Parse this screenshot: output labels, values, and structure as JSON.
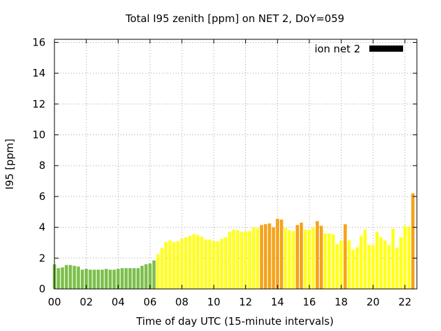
{
  "chart_data": {
    "type": "bar",
    "title": "Total I95 zenith [ppm] on NET 2, DoY=059",
    "xlabel": "Time of day UTC (15-minute intervals)",
    "ylabel": "I95 [ppm]",
    "xlim": [
      0,
      22.75
    ],
    "ylim": [
      0,
      16.2
    ],
    "x_ticks": [
      {
        "value": 0,
        "label": "00"
      },
      {
        "value": 2,
        "label": "02"
      },
      {
        "value": 4,
        "label": "04"
      },
      {
        "value": 6,
        "label": "06"
      },
      {
        "value": 8,
        "label": "08"
      },
      {
        "value": 10,
        "label": "10"
      },
      {
        "value": 12,
        "label": "12"
      },
      {
        "value": 14,
        "label": "14"
      },
      {
        "value": 16,
        "label": "16"
      },
      {
        "value": 18,
        "label": "18"
      },
      {
        "value": 20,
        "label": "20"
      },
      {
        "value": 22,
        "label": "22"
      }
    ],
    "y_ticks": [
      {
        "value": 0,
        "label": "0"
      },
      {
        "value": 2,
        "label": "2"
      },
      {
        "value": 4,
        "label": "4"
      },
      {
        "value": 6,
        "label": "6"
      },
      {
        "value": 8,
        "label": "8"
      },
      {
        "value": 10,
        "label": "10"
      },
      {
        "value": 12,
        "label": "12"
      },
      {
        "value": 14,
        "label": "14"
      },
      {
        "value": 16,
        "label": "16"
      }
    ],
    "grid": true,
    "legend": {
      "label": "ion net 2",
      "color": "#000000",
      "placement": "top-right"
    },
    "interval_hours": 0.25,
    "level_colors": {
      "low": "#7cbf4a",
      "mid": "#ffff1e",
      "high": "#f5a21a"
    },
    "values": [
      1.6,
      1.35,
      1.4,
      1.55,
      1.55,
      1.5,
      1.45,
      1.25,
      1.3,
      1.25,
      1.25,
      1.25,
      1.25,
      1.3,
      1.25,
      1.25,
      1.3,
      1.35,
      1.35,
      1.35,
      1.35,
      1.35,
      1.5,
      1.6,
      1.65,
      1.85,
      2.25,
      2.65,
      3.05,
      3.15,
      3.05,
      3.1,
      3.25,
      3.35,
      3.45,
      3.55,
      3.5,
      3.4,
      3.2,
      3.2,
      3.1,
      3.1,
      3.25,
      3.35,
      3.7,
      3.85,
      3.8,
      3.7,
      3.75,
      3.75,
      4.0,
      3.95,
      4.15,
      4.2,
      4.25,
      4.0,
      4.55,
      4.5,
      3.95,
      3.8,
      3.75,
      4.15,
      4.3,
      3.85,
      3.85,
      4.0,
      4.4,
      4.1,
      3.6,
      3.6,
      3.55,
      2.9,
      3.15,
      4.2,
      3.15,
      2.55,
      2.7,
      3.45,
      3.85,
      2.85,
      2.85,
      3.7,
      3.35,
      3.15,
      2.85,
      3.9,
      2.65,
      3.35,
      4.1,
      4.05,
      6.2
    ],
    "levels": [
      "low",
      "low",
      "low",
      "low",
      "low",
      "low",
      "low",
      "low",
      "low",
      "low",
      "low",
      "low",
      "low",
      "low",
      "low",
      "low",
      "low",
      "low",
      "low",
      "low",
      "low",
      "low",
      "low",
      "low",
      "low",
      "low",
      "mid",
      "mid",
      "mid",
      "mid",
      "mid",
      "mid",
      "mid",
      "mid",
      "mid",
      "mid",
      "mid",
      "mid",
      "mid",
      "mid",
      "mid",
      "mid",
      "mid",
      "mid",
      "mid",
      "mid",
      "mid",
      "mid",
      "mid",
      "mid",
      "mid",
      "mid",
      "high",
      "high",
      "high",
      "high",
      "high",
      "high",
      "mid",
      "mid",
      "mid",
      "high",
      "high",
      "mid",
      "mid",
      "mid",
      "high",
      "high",
      "mid",
      "mid",
      "mid",
      "mid",
      "mid",
      "high",
      "mid",
      "mid",
      "mid",
      "mid",
      "mid",
      "mid",
      "mid",
      "mid",
      "mid",
      "mid",
      "mid",
      "mid",
      "mid",
      "mid",
      "mid",
      "mid",
      "high"
    ]
  }
}
